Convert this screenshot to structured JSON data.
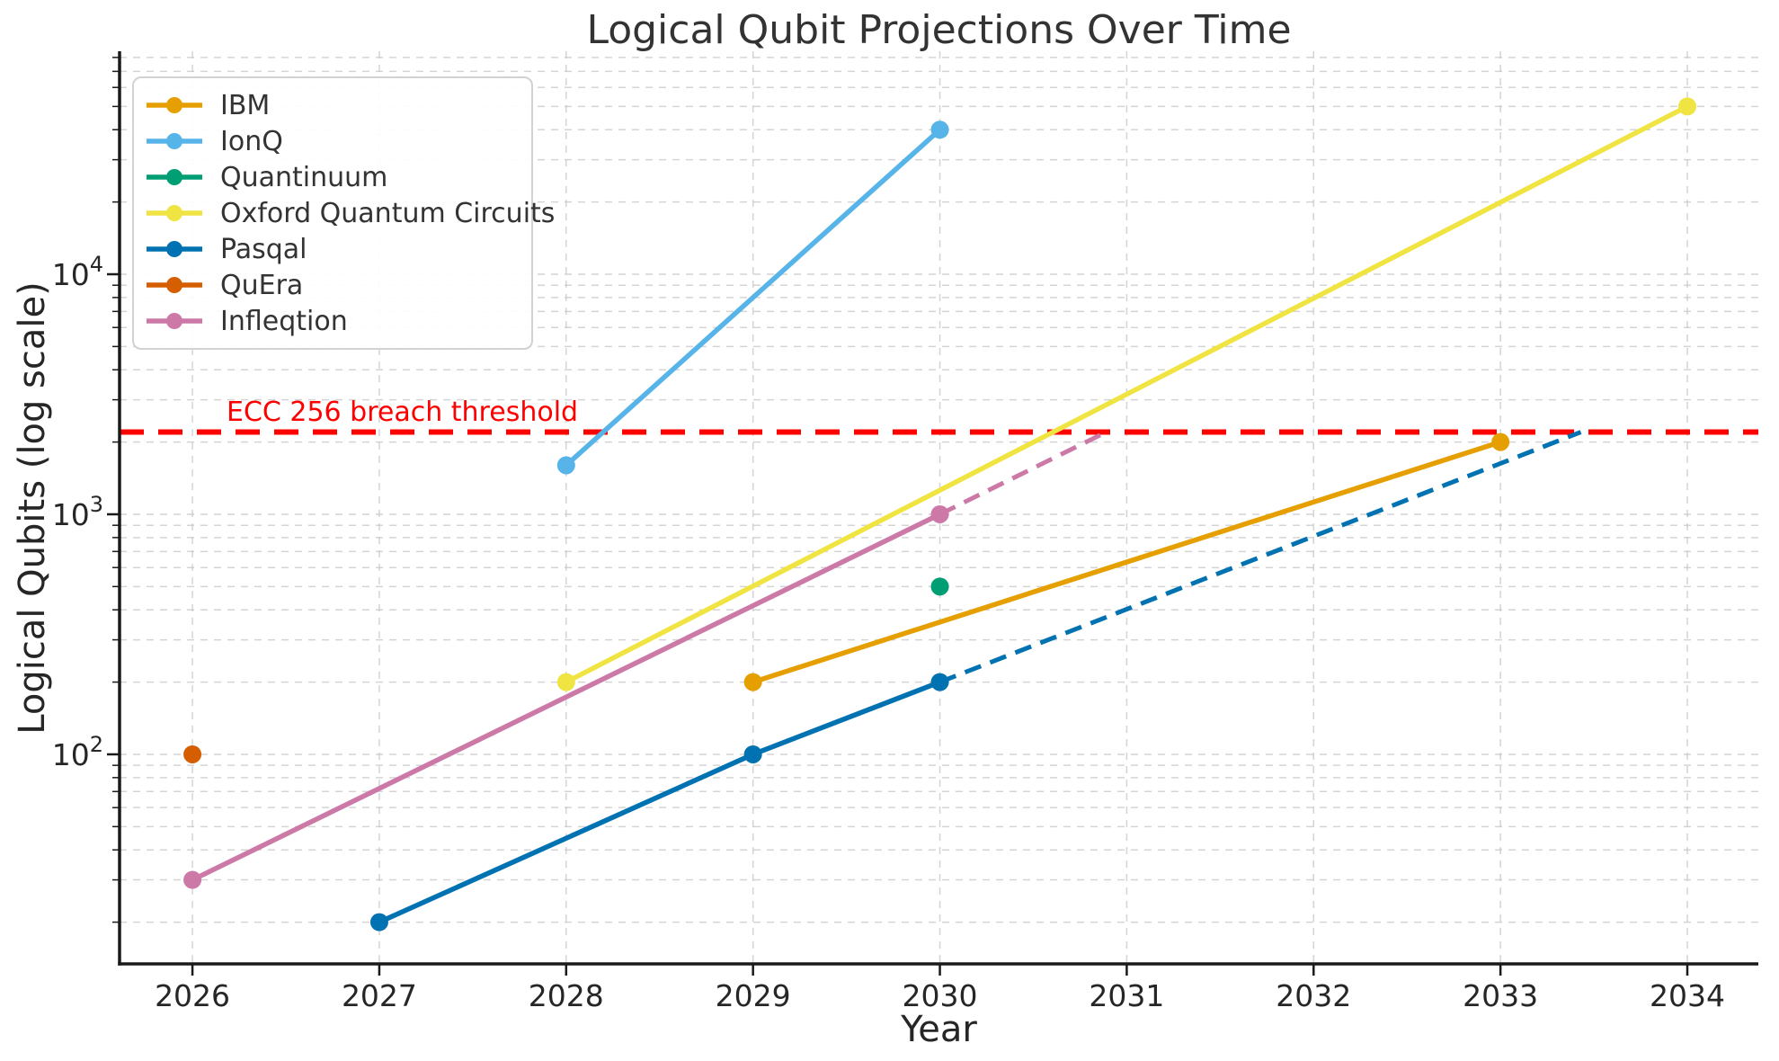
{
  "chart_data": {
    "type": "line",
    "title": "Logical Qubit Projections Over Time",
    "xlabel": "Year",
    "ylabel": "Logical Qubits (log scale)",
    "x_ticks": [
      2026,
      2027,
      2028,
      2029,
      2030,
      2031,
      2032,
      2033,
      2034
    ],
    "xlim": [
      2025.61,
      2034.38
    ],
    "y_scale": "log",
    "ylim": [
      13.4,
      84900
    ],
    "y_major_ticks": [
      100,
      1000,
      10000
    ],
    "grid": {
      "show": true,
      "which": "both",
      "style": "dashed",
      "color": "#c6c6c6"
    },
    "legend_position": "upper-left",
    "threshold": {
      "label": "ECC 256 breach threshold",
      "value": 2200,
      "color": "#fe0000",
      "style": "dashed"
    },
    "series": [
      {
        "name": "IBM",
        "color": "#E69F00",
        "points": [
          [
            2029,
            200
          ],
          [
            2033,
            2000
          ]
        ]
      },
      {
        "name": "IonQ",
        "color": "#56B4E9",
        "points": [
          [
            2028,
            1600
          ],
          [
            2030,
            40000
          ]
        ]
      },
      {
        "name": "Quantinuum",
        "color": "#009E73",
        "points": [
          [
            2030,
            500
          ]
        ]
      },
      {
        "name": "Oxford Quantum Circuits",
        "color": "#F0E442",
        "points": [
          [
            2028,
            200
          ],
          [
            2034,
            50000
          ]
        ]
      },
      {
        "name": "Pasqal",
        "color": "#0072B2",
        "points": [
          [
            2027,
            20
          ],
          [
            2029,
            100
          ],
          [
            2030,
            200
          ]
        ],
        "projection_to_threshold": [
          [
            2030,
            200
          ],
          [
            2033.43,
            2200
          ]
        ]
      },
      {
        "name": "QuEra",
        "color": "#D55E00",
        "points": [
          [
            2026,
            100
          ]
        ]
      },
      {
        "name": "Infleqtion",
        "color": "#CC79A7",
        "points": [
          [
            2026,
            30
          ],
          [
            2030,
            1000
          ]
        ],
        "projection_to_threshold": [
          [
            2030,
            1000
          ],
          [
            2030.89,
            2200
          ]
        ]
      }
    ]
  }
}
